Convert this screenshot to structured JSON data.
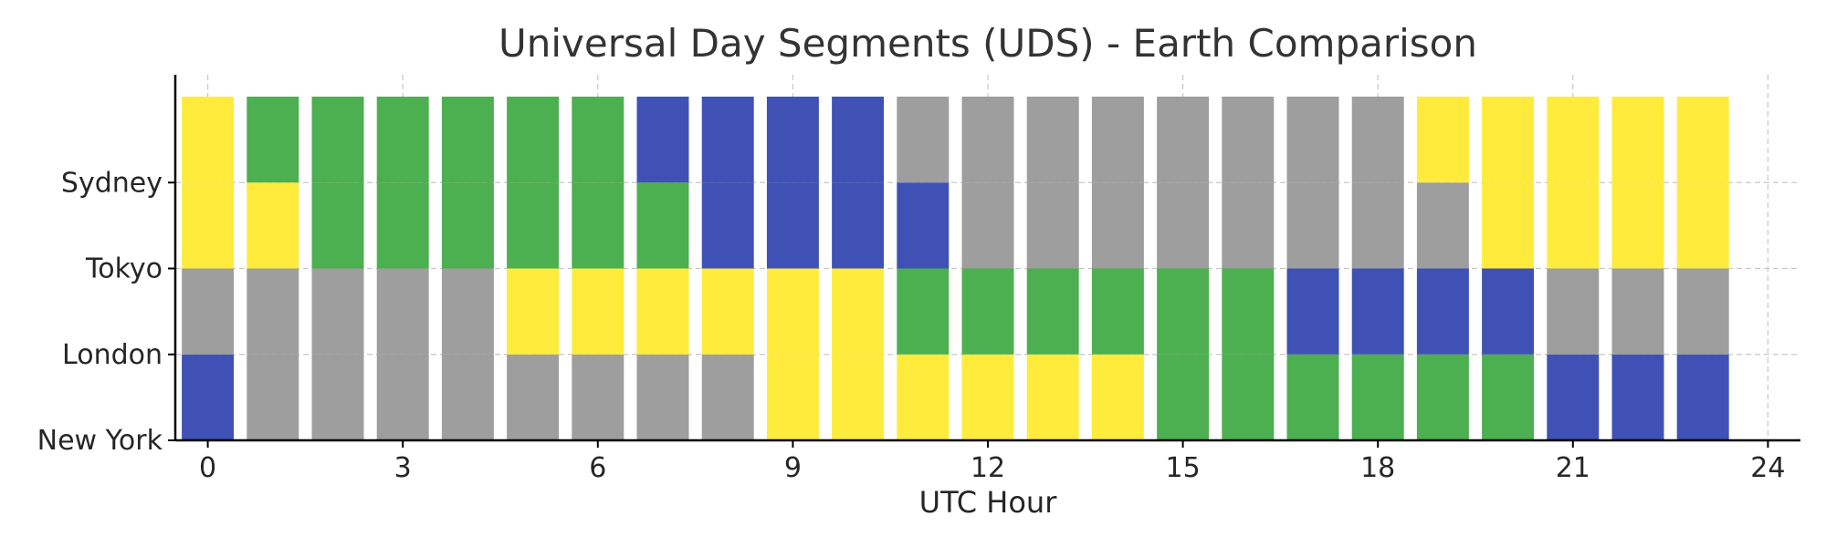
{
  "chart_data": {
    "type": "stacked-bar",
    "title": "Universal Day Segments (UDS) - Earth Comparison",
    "xlabel": "UTC Hour",
    "ylabel": "",
    "x": [
      0,
      1,
      2,
      3,
      4,
      5,
      6,
      7,
      8,
      9,
      10,
      11,
      12,
      13,
      14,
      15,
      16,
      17,
      18,
      19,
      20,
      21,
      22,
      23
    ],
    "xticks": [
      0,
      3,
      6,
      9,
      12,
      15,
      18,
      21,
      24
    ],
    "xlim": [
      -0.5,
      24.5
    ],
    "yticks": [
      "New York",
      "London",
      "Tokyo",
      "Sydney"
    ],
    "grid": true,
    "legend": "none",
    "segment_colors": {
      "night": "#3f51b5",
      "morning": "#9e9e9e",
      "day": "#ffeb3b",
      "evening": "#4caf50"
    },
    "series": [
      {
        "segments": [
          "night",
          "morning",
          "morning",
          "morning",
          "morning",
          "morning",
          "morning",
          "morning",
          "morning",
          "day",
          "day",
          "day",
          "day",
          "day",
          "day",
          "evening",
          "evening",
          "evening",
          "evening",
          "evening",
          "evening",
          "night",
          "night",
          "night"
        ]
      },
      {
        "segments": [
          "morning",
          "morning",
          "morning",
          "morning",
          "morning",
          "day",
          "day",
          "day",
          "day",
          "day",
          "day",
          "evening",
          "evening",
          "evening",
          "evening",
          "evening",
          "evening",
          "night",
          "night",
          "night",
          "night",
          "morning",
          "morning",
          "morning"
        ]
      },
      {
        "segments": [
          "day",
          "day",
          "evening",
          "evening",
          "evening",
          "evening",
          "evening",
          "evening",
          "night",
          "night",
          "night",
          "night",
          "morning",
          "morning",
          "morning",
          "morning",
          "morning",
          "morning",
          "morning",
          "morning",
          "day",
          "day",
          "day",
          "day"
        ]
      },
      {
        "segments": [
          "day",
          "evening",
          "evening",
          "evening",
          "evening",
          "evening",
          "evening",
          "night",
          "night",
          "night",
          "night",
          "morning",
          "morning",
          "morning",
          "morning",
          "morning",
          "morning",
          "morning",
          "morning",
          "day",
          "day",
          "day",
          "day",
          "day"
        ]
      }
    ]
  }
}
